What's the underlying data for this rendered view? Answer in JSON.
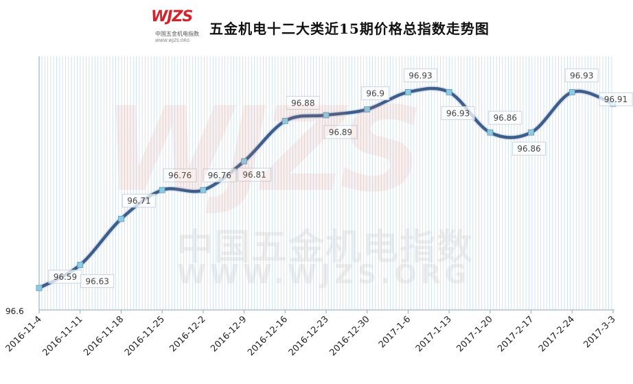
{
  "header": {
    "title": "五金机电十二大类近15期价格总指数走势图",
    "logo_mark": "WJZS",
    "logo_cn": "中国五金机电指数",
    "logo_url": "WWW.WJZS.ORG"
  },
  "watermark": {
    "mark": "WJZS",
    "cn": "中国五金机电指数",
    "url": "WWW.WJZS.ORG"
  },
  "chart_data": {
    "type": "line",
    "title": "五金机电十二大类近15期价格总指数走势图",
    "categories": [
      "2016-11-4",
      "2016-11-11",
      "2016-11-18",
      "2016-11-25",
      "2016-12-2",
      "2016-12-9",
      "2016-12-16",
      "2016-12-23",
      "2016-12-30",
      "2017-1-6",
      "2017-1-13",
      "2017-1-20",
      "2017-2-17",
      "2017-2-24",
      "2017-3-3"
    ],
    "values": [
      96.59,
      96.63,
      96.71,
      96.76,
      96.76,
      96.81,
      96.88,
      96.89,
      96.9,
      96.93,
      96.93,
      96.86,
      96.86,
      96.93,
      96.91
    ],
    "y_tick_labels": [
      "96.6"
    ],
    "smooth": true,
    "grid": "vertical",
    "legend": "none",
    "colors": {
      "line": "#3d5d8a",
      "marker": "#8fcbe0",
      "grid": "#c9dbe9",
      "axis": "#8aa6bd"
    }
  }
}
